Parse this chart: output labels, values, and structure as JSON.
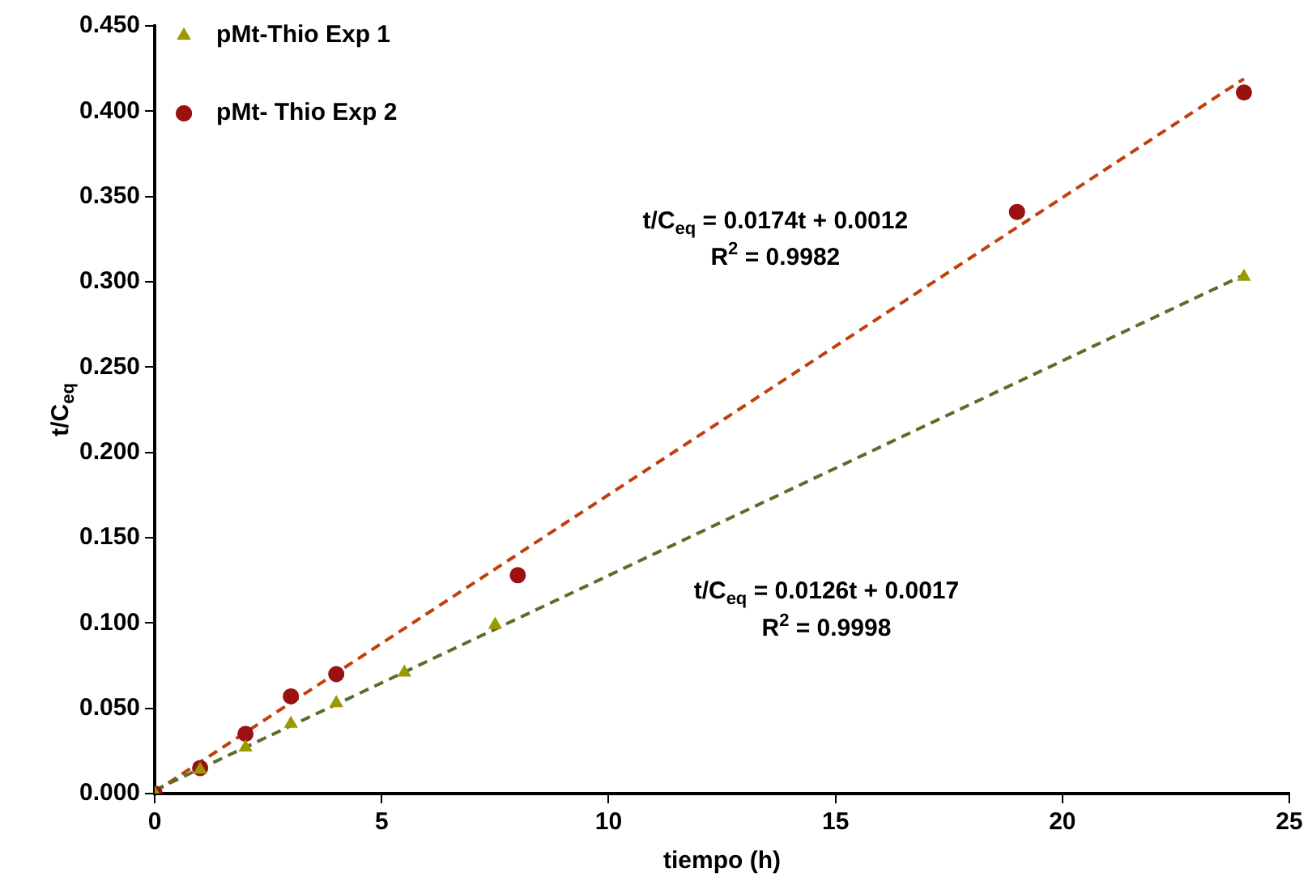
{
  "chart_data": {
    "type": "scatter",
    "xlabel": "tiempo (h)",
    "ylabel": "t/C$_{eq}$",
    "xlim": [
      0,
      25
    ],
    "xticks": [
      0,
      5,
      10,
      15,
      20,
      25
    ],
    "ylim": [
      0,
      0.45
    ],
    "yticks": [
      {
        "value": 0,
        "label": "0.000"
      },
      {
        "value": 0.05,
        "label": "0.050"
      },
      {
        "value": 0.1,
        "label": "0.100"
      },
      {
        "value": 0.15,
        "label": "0.150"
      },
      {
        "value": 0.2,
        "label": "0.200"
      },
      {
        "value": 0.25,
        "label": "0.250"
      },
      {
        "value": 0.3,
        "label": "0.300"
      },
      {
        "value": 0.35,
        "label": "0.350"
      },
      {
        "value": 0.4,
        "label": "0.400"
      },
      {
        "value": 0.45,
        "label": "0.450"
      }
    ],
    "grid": false,
    "legend": "top left",
    "series": [
      {
        "name": "pMt-Thio Exp 1",
        "type": "scatter",
        "marker": "triangle",
        "color": "#9a9a00",
        "x": [
          0,
          1,
          2,
          3,
          4,
          5.5,
          7.5,
          24
        ],
        "values": [
          0,
          0.014,
          0.027,
          0.041,
          0.053,
          0.071,
          0.099,
          0.303
        ]
      },
      {
        "name": "pMt- Thio Exp 2",
        "type": "scatter",
        "marker": "circle",
        "color": "#9b1010",
        "x": [
          0,
          1,
          2,
          3,
          4,
          8,
          19,
          24
        ],
        "values": [
          0,
          0.015,
          0.035,
          0.057,
          0.07,
          0.128,
          0.341,
          0.411
        ]
      },
      {
        "type": "line",
        "marker": "none",
        "line_style": "dashed",
        "color": "#5a6e2a",
        "x": [
          0,
          24
        ],
        "values": [
          0.002,
          0.304
        ]
      },
      {
        "type": "line",
        "marker": "none",
        "line_style": "dashed",
        "color": "#c0400c",
        "x": [
          0,
          24
        ],
        "values": [
          0.001,
          0.419
        ]
      }
    ],
    "annotations": [
      "t/C$_{eq}$ = 0.0174t + 0.0012",
      "R$^{2}$ = 0.9982",
      "t/C$_{eq}$ = 0.0126t + 0.0017",
      "R$^{2}$ = 0.9998"
    ]
  }
}
